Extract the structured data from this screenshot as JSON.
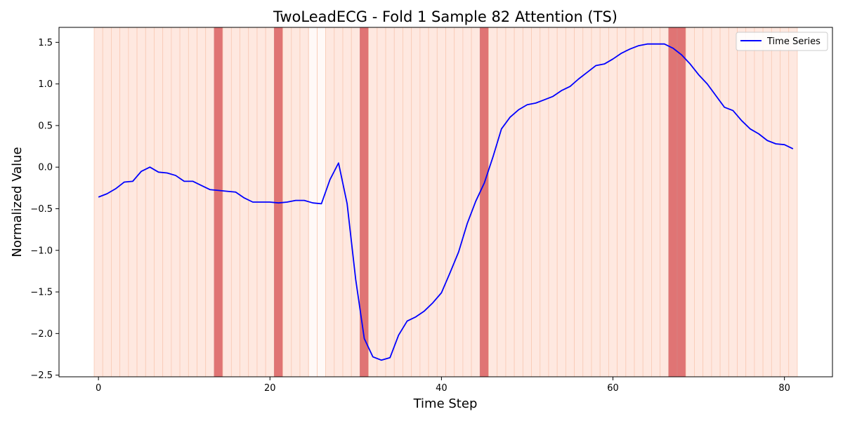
{
  "chart_data": {
    "type": "line",
    "title": "TwoLeadECG - Fold 1 Sample 82 Attention (TS)",
    "xlabel": "Time Step",
    "ylabel": "Normalized Value",
    "xlim": [
      -4.6,
      85.6
    ],
    "ylim": [
      -2.52,
      1.68
    ],
    "xticks": [
      0,
      20,
      40,
      60,
      80
    ],
    "yticks": [
      -2.5,
      -2.0,
      -1.5,
      -1.0,
      -0.5,
      0.0,
      0.5,
      1.0,
      1.5
    ],
    "grid": false,
    "legend_position": "upper right",
    "series": [
      {
        "name": "Time Series",
        "color": "#0000ff",
        "x": [
          0,
          1,
          2,
          3,
          4,
          5,
          6,
          7,
          8,
          9,
          10,
          11,
          12,
          13,
          14,
          15,
          16,
          17,
          18,
          19,
          20,
          21,
          22,
          23,
          24,
          25,
          26,
          27,
          28,
          29,
          30,
          31,
          32,
          33,
          34,
          35,
          36,
          37,
          38,
          39,
          40,
          41,
          42,
          43,
          44,
          45,
          46,
          47,
          48,
          49,
          50,
          51,
          52,
          53,
          54,
          55,
          56,
          57,
          58,
          59,
          60,
          61,
          62,
          63,
          64,
          65,
          66,
          67,
          68,
          69,
          70,
          71,
          72,
          73,
          74,
          75,
          76,
          77,
          78,
          79,
          80,
          81
        ],
        "values": [
          -0.36,
          -0.32,
          -0.26,
          -0.18,
          -0.17,
          -0.05,
          0.0,
          -0.06,
          -0.07,
          -0.1,
          -0.17,
          -0.17,
          -0.22,
          -0.27,
          -0.28,
          -0.29,
          -0.3,
          -0.37,
          -0.42,
          -0.42,
          -0.42,
          -0.43,
          -0.42,
          -0.4,
          -0.4,
          -0.43,
          -0.44,
          -0.15,
          0.05,
          -0.44,
          -1.35,
          -2.06,
          -2.28,
          -2.32,
          -2.29,
          -2.02,
          -1.85,
          -1.8,
          -1.73,
          -1.63,
          -1.51,
          -1.27,
          -1.02,
          -0.68,
          -0.41,
          -0.19,
          0.12,
          0.46,
          0.6,
          0.69,
          0.75,
          0.77,
          0.81,
          0.85,
          0.92,
          0.97,
          1.06,
          1.14,
          1.22,
          1.24,
          1.3,
          1.37,
          1.42,
          1.46,
          1.48,
          1.48,
          1.48,
          1.43,
          1.35,
          1.24,
          1.11,
          1.0,
          0.86,
          0.72,
          0.68,
          0.56,
          0.46,
          0.4,
          0.32,
          0.28,
          0.27,
          0.22
        ]
      }
    ],
    "attention": {
      "x": [
        0,
        1,
        2,
        3,
        4,
        5,
        6,
        7,
        8,
        9,
        10,
        11,
        12,
        13,
        14,
        15,
        16,
        17,
        18,
        19,
        20,
        21,
        22,
        23,
        24,
        25,
        26,
        27,
        28,
        29,
        30,
        31,
        32,
        33,
        34,
        35,
        36,
        37,
        38,
        39,
        40,
        41,
        42,
        43,
        44,
        45,
        46,
        47,
        48,
        49,
        50,
        51,
        52,
        53,
        54,
        55,
        56,
        57,
        58,
        59,
        60,
        61,
        62,
        63,
        64,
        65,
        66,
        67,
        68,
        69,
        70,
        71,
        72,
        73,
        74,
        75,
        76,
        77,
        78,
        79,
        80,
        81
      ],
      "weights": [
        0.3,
        0.3,
        0.3,
        0.3,
        0.3,
        0.3,
        0.3,
        0.3,
        0.3,
        0.3,
        0.3,
        0.3,
        0.3,
        0.3,
        1.0,
        0.3,
        0.3,
        0.3,
        0.3,
        0.3,
        0.3,
        1.0,
        0.3,
        0.3,
        0.3,
        0.05,
        0.05,
        0.3,
        0.3,
        0.3,
        0.3,
        1.0,
        0.3,
        0.3,
        0.3,
        0.3,
        0.3,
        0.3,
        0.3,
        0.3,
        0.3,
        0.3,
        0.3,
        0.3,
        0.3,
        1.0,
        0.3,
        0.3,
        0.3,
        0.3,
        0.3,
        0.3,
        0.3,
        0.3,
        0.3,
        0.3,
        0.3,
        0.3,
        0.3,
        0.3,
        0.3,
        0.3,
        0.3,
        0.3,
        0.3,
        0.3,
        0.3,
        1.0,
        1.0,
        0.3,
        0.3,
        0.3,
        0.3,
        0.3,
        0.3,
        0.3,
        0.3,
        0.3,
        0.3,
        0.3,
        0.3,
        0.3
      ],
      "low_color": "#fee8e0",
      "high_color": "#e07474"
    }
  }
}
